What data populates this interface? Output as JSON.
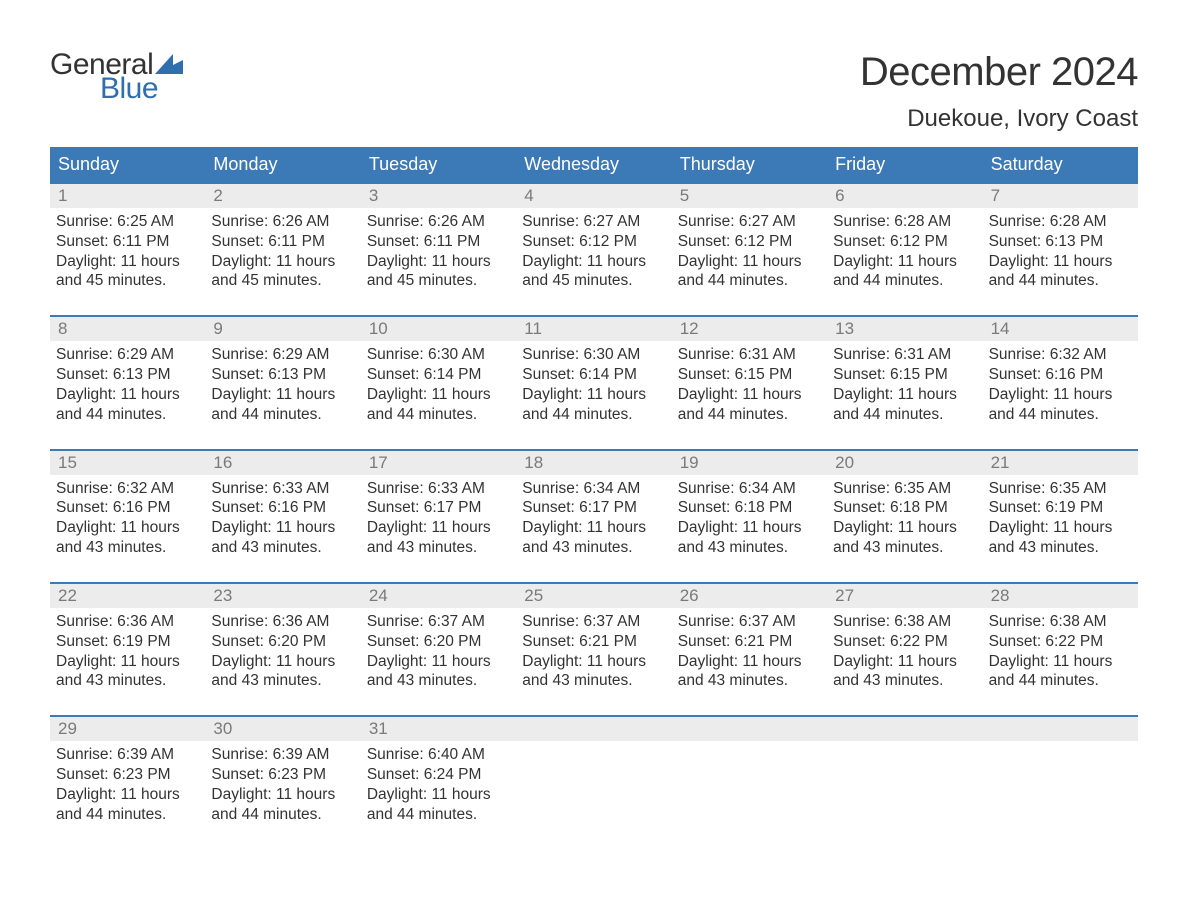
{
  "brand": {
    "word1": "General",
    "word2": "Blue",
    "text_color_dark": "#333333",
    "text_color_blue": "#2f6fae",
    "flag_color": "#2f6fae"
  },
  "title": {
    "month_year": "December 2024",
    "location": "Duekoue, Ivory Coast",
    "title_fontsize": 40,
    "location_fontsize": 24,
    "text_color": "#333333"
  },
  "calendar": {
    "type": "table",
    "header_bg": "#3b79b7",
    "header_text_color": "#ffffff",
    "week_border_color": "#3b79b7",
    "daynum_bg": "#ececec",
    "daynum_color": "#7a7a7a",
    "body_text_color": "#333333",
    "body_fontsize": 15.5,
    "columns": [
      "Sunday",
      "Monday",
      "Tuesday",
      "Wednesday",
      "Thursday",
      "Friday",
      "Saturday"
    ],
    "weeks": [
      [
        {
          "n": "1",
          "sunrise": "Sunrise: 6:25 AM",
          "sunset": "Sunset: 6:11 PM",
          "day1": "Daylight: 11 hours",
          "day2": "and 45 minutes."
        },
        {
          "n": "2",
          "sunrise": "Sunrise: 6:26 AM",
          "sunset": "Sunset: 6:11 PM",
          "day1": "Daylight: 11 hours",
          "day2": "and 45 minutes."
        },
        {
          "n": "3",
          "sunrise": "Sunrise: 6:26 AM",
          "sunset": "Sunset: 6:11 PM",
          "day1": "Daylight: 11 hours",
          "day2": "and 45 minutes."
        },
        {
          "n": "4",
          "sunrise": "Sunrise: 6:27 AM",
          "sunset": "Sunset: 6:12 PM",
          "day1": "Daylight: 11 hours",
          "day2": "and 45 minutes."
        },
        {
          "n": "5",
          "sunrise": "Sunrise: 6:27 AM",
          "sunset": "Sunset: 6:12 PM",
          "day1": "Daylight: 11 hours",
          "day2": "and 44 minutes."
        },
        {
          "n": "6",
          "sunrise": "Sunrise: 6:28 AM",
          "sunset": "Sunset: 6:12 PM",
          "day1": "Daylight: 11 hours",
          "day2": "and 44 minutes."
        },
        {
          "n": "7",
          "sunrise": "Sunrise: 6:28 AM",
          "sunset": "Sunset: 6:13 PM",
          "day1": "Daylight: 11 hours",
          "day2": "and 44 minutes."
        }
      ],
      [
        {
          "n": "8",
          "sunrise": "Sunrise: 6:29 AM",
          "sunset": "Sunset: 6:13 PM",
          "day1": "Daylight: 11 hours",
          "day2": "and 44 minutes."
        },
        {
          "n": "9",
          "sunrise": "Sunrise: 6:29 AM",
          "sunset": "Sunset: 6:13 PM",
          "day1": "Daylight: 11 hours",
          "day2": "and 44 minutes."
        },
        {
          "n": "10",
          "sunrise": "Sunrise: 6:30 AM",
          "sunset": "Sunset: 6:14 PM",
          "day1": "Daylight: 11 hours",
          "day2": "and 44 minutes."
        },
        {
          "n": "11",
          "sunrise": "Sunrise: 6:30 AM",
          "sunset": "Sunset: 6:14 PM",
          "day1": "Daylight: 11 hours",
          "day2": "and 44 minutes."
        },
        {
          "n": "12",
          "sunrise": "Sunrise: 6:31 AM",
          "sunset": "Sunset: 6:15 PM",
          "day1": "Daylight: 11 hours",
          "day2": "and 44 minutes."
        },
        {
          "n": "13",
          "sunrise": "Sunrise: 6:31 AM",
          "sunset": "Sunset: 6:15 PM",
          "day1": "Daylight: 11 hours",
          "day2": "and 44 minutes."
        },
        {
          "n": "14",
          "sunrise": "Sunrise: 6:32 AM",
          "sunset": "Sunset: 6:16 PM",
          "day1": "Daylight: 11 hours",
          "day2": "and 44 minutes."
        }
      ],
      [
        {
          "n": "15",
          "sunrise": "Sunrise: 6:32 AM",
          "sunset": "Sunset: 6:16 PM",
          "day1": "Daylight: 11 hours",
          "day2": "and 43 minutes."
        },
        {
          "n": "16",
          "sunrise": "Sunrise: 6:33 AM",
          "sunset": "Sunset: 6:16 PM",
          "day1": "Daylight: 11 hours",
          "day2": "and 43 minutes."
        },
        {
          "n": "17",
          "sunrise": "Sunrise: 6:33 AM",
          "sunset": "Sunset: 6:17 PM",
          "day1": "Daylight: 11 hours",
          "day2": "and 43 minutes."
        },
        {
          "n": "18",
          "sunrise": "Sunrise: 6:34 AM",
          "sunset": "Sunset: 6:17 PM",
          "day1": "Daylight: 11 hours",
          "day2": "and 43 minutes."
        },
        {
          "n": "19",
          "sunrise": "Sunrise: 6:34 AM",
          "sunset": "Sunset: 6:18 PM",
          "day1": "Daylight: 11 hours",
          "day2": "and 43 minutes."
        },
        {
          "n": "20",
          "sunrise": "Sunrise: 6:35 AM",
          "sunset": "Sunset: 6:18 PM",
          "day1": "Daylight: 11 hours",
          "day2": "and 43 minutes."
        },
        {
          "n": "21",
          "sunrise": "Sunrise: 6:35 AM",
          "sunset": "Sunset: 6:19 PM",
          "day1": "Daylight: 11 hours",
          "day2": "and 43 minutes."
        }
      ],
      [
        {
          "n": "22",
          "sunrise": "Sunrise: 6:36 AM",
          "sunset": "Sunset: 6:19 PM",
          "day1": "Daylight: 11 hours",
          "day2": "and 43 minutes."
        },
        {
          "n": "23",
          "sunrise": "Sunrise: 6:36 AM",
          "sunset": "Sunset: 6:20 PM",
          "day1": "Daylight: 11 hours",
          "day2": "and 43 minutes."
        },
        {
          "n": "24",
          "sunrise": "Sunrise: 6:37 AM",
          "sunset": "Sunset: 6:20 PM",
          "day1": "Daylight: 11 hours",
          "day2": "and 43 minutes."
        },
        {
          "n": "25",
          "sunrise": "Sunrise: 6:37 AM",
          "sunset": "Sunset: 6:21 PM",
          "day1": "Daylight: 11 hours",
          "day2": "and 43 minutes."
        },
        {
          "n": "26",
          "sunrise": "Sunrise: 6:37 AM",
          "sunset": "Sunset: 6:21 PM",
          "day1": "Daylight: 11 hours",
          "day2": "and 43 minutes."
        },
        {
          "n": "27",
          "sunrise": "Sunrise: 6:38 AM",
          "sunset": "Sunset: 6:22 PM",
          "day1": "Daylight: 11 hours",
          "day2": "and 43 minutes."
        },
        {
          "n": "28",
          "sunrise": "Sunrise: 6:38 AM",
          "sunset": "Sunset: 6:22 PM",
          "day1": "Daylight: 11 hours",
          "day2": "and 44 minutes."
        }
      ],
      [
        {
          "n": "29",
          "sunrise": "Sunrise: 6:39 AM",
          "sunset": "Sunset: 6:23 PM",
          "day1": "Daylight: 11 hours",
          "day2": "and 44 minutes."
        },
        {
          "n": "30",
          "sunrise": "Sunrise: 6:39 AM",
          "sunset": "Sunset: 6:23 PM",
          "day1": "Daylight: 11 hours",
          "day2": "and 44 minutes."
        },
        {
          "n": "31",
          "sunrise": "Sunrise: 6:40 AM",
          "sunset": "Sunset: 6:24 PM",
          "day1": "Daylight: 11 hours",
          "day2": "and 44 minutes."
        },
        null,
        null,
        null,
        null
      ]
    ]
  }
}
